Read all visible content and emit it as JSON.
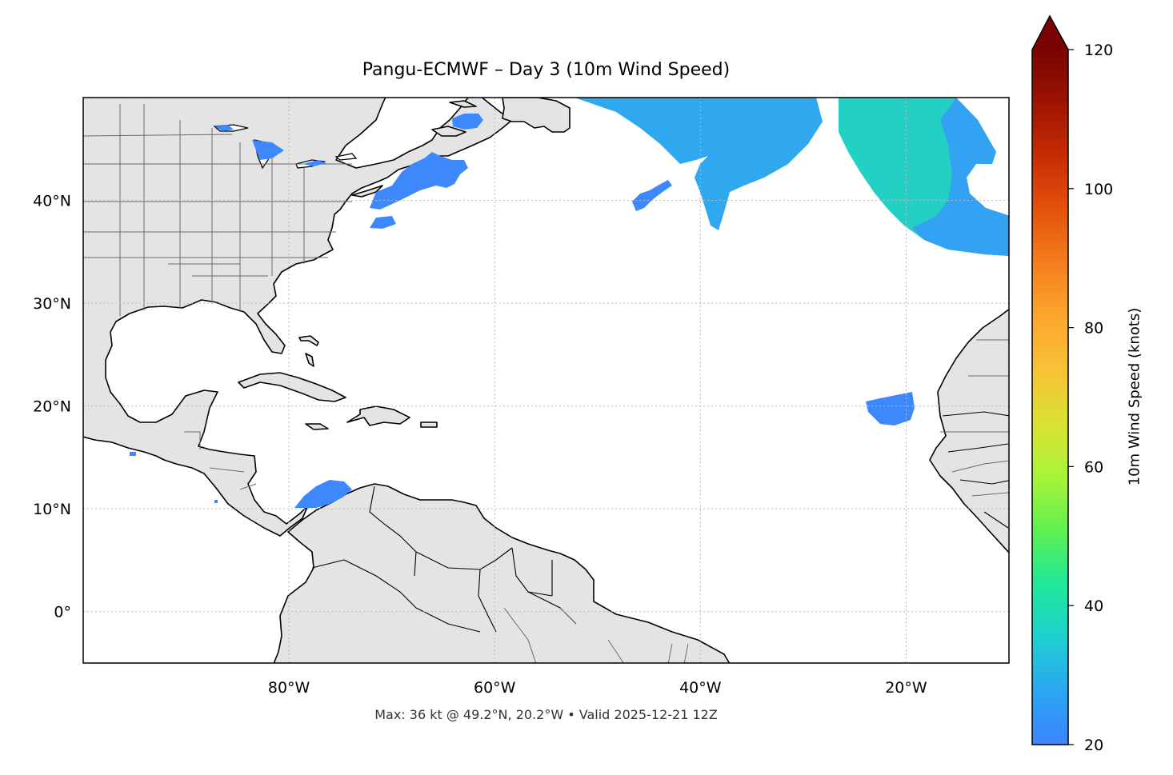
{
  "title": "Pangu-ECMWF – Day 3 (10m Wind Speed)",
  "footnote": "Max: 36 kt @ 49.2°N, 20.2°W • Valid 2025-12-21 12Z",
  "map": {
    "projection": "plate carree",
    "extent": {
      "lon_min": -100,
      "lon_max": -10,
      "lat_min": -5,
      "lat_max": 50
    },
    "land_color": "#e4e4e4",
    "coastline_color": "#000000",
    "border_color": "#6b6b6b",
    "gridlines": "dotted light gray",
    "lon_ticks": [
      {
        "value": -80,
        "label": "80°W"
      },
      {
        "value": -60,
        "label": "60°W"
      },
      {
        "value": -40,
        "label": "40°W"
      },
      {
        "value": -20,
        "label": "20°W"
      }
    ],
    "lat_ticks": [
      {
        "value": 40,
        "label": "40°N"
      },
      {
        "value": 30,
        "label": "30°N"
      },
      {
        "value": 20,
        "label": "20°N"
      },
      {
        "value": 10,
        "label": "10°N"
      },
      {
        "value": 0,
        "label": "0°"
      }
    ]
  },
  "colorbar": {
    "label": "10m Wind Speed (knots)",
    "min": 20,
    "max": 120,
    "extend": "max",
    "ticks": [
      {
        "value": 20,
        "label": "20"
      },
      {
        "value": 40,
        "label": "40"
      },
      {
        "value": 60,
        "label": "60"
      },
      {
        "value": 80,
        "label": "80"
      },
      {
        "value": 100,
        "label": "100"
      },
      {
        "value": 120,
        "label": "120"
      }
    ],
    "colors": [
      "#3d84ff",
      "#2aa6f2",
      "#1fd0d0",
      "#1ee89a",
      "#5ff050",
      "#a8f43a",
      "#d9e232",
      "#f7c236",
      "#fba62e",
      "#f57e1d",
      "#e4520c",
      "#c72d04",
      "#9e1402",
      "#7a0403"
    ],
    "extend_color": "#7a0403"
  },
  "wind_regions": [
    {
      "area": "Gulf of Maine / Nova Scotia",
      "approx_speed_kt": 22
    },
    {
      "area": "Central North Atlantic trough",
      "approx_speed_kt": 24
    },
    {
      "area": "Northeast Atlantic near 49°N 20°W",
      "approx_speed_kt": 36
    },
    {
      "area": "Off West Africa near 20°N",
      "approx_speed_kt": 22
    },
    {
      "area": "Southwest Caribbean",
      "approx_speed_kt": 22
    }
  ]
}
